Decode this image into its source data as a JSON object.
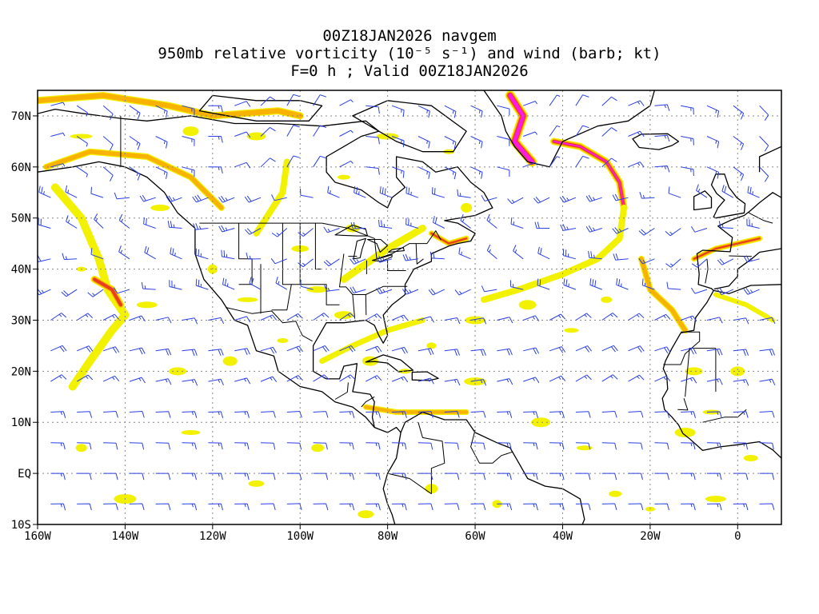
{
  "title": {
    "line1": "00Z18JAN2026 navgem",
    "line2": "950mb relative vorticity (10⁻⁵ s⁻¹) and wind (barb; kt)",
    "line3": "F=0 h ; Valid 00Z18JAN2026"
  },
  "map": {
    "projection": "cylindrical equidistant",
    "lon_range": [
      -160,
      10
    ],
    "lat_range": [
      -10,
      75
    ],
    "grid": "dotted",
    "lon_ticks": [
      {
        "value": -160,
        "label": "160W"
      },
      {
        "value": -140,
        "label": "140W"
      },
      {
        "value": -120,
        "label": "120W"
      },
      {
        "value": -100,
        "label": "100W"
      },
      {
        "value": -80,
        "label": "80W"
      },
      {
        "value": -60,
        "label": "60W"
      },
      {
        "value": -40,
        "label": "40W"
      },
      {
        "value": -20,
        "label": "20W"
      },
      {
        "value": 0,
        "label": "0"
      }
    ],
    "lat_ticks": [
      {
        "value": 70,
        "label": "70N"
      },
      {
        "value": 60,
        "label": "60N"
      },
      {
        "value": 50,
        "label": "50N"
      },
      {
        "value": 40,
        "label": "40N"
      },
      {
        "value": 30,
        "label": "30N"
      },
      {
        "value": 20,
        "label": "20N"
      },
      {
        "value": 10,
        "label": "10N"
      },
      {
        "value": 0,
        "label": "EQ"
      },
      {
        "value": -10,
        "label": "10S"
      }
    ],
    "colors": {
      "coast": "#000000",
      "barb": "#2a3fe6",
      "vort_low": "#f2f200",
      "vort_mid": "#f7b300",
      "vort_high": "#e8401e",
      "vort_max": "#ff19e6",
      "grid": "#888888"
    }
  }
}
